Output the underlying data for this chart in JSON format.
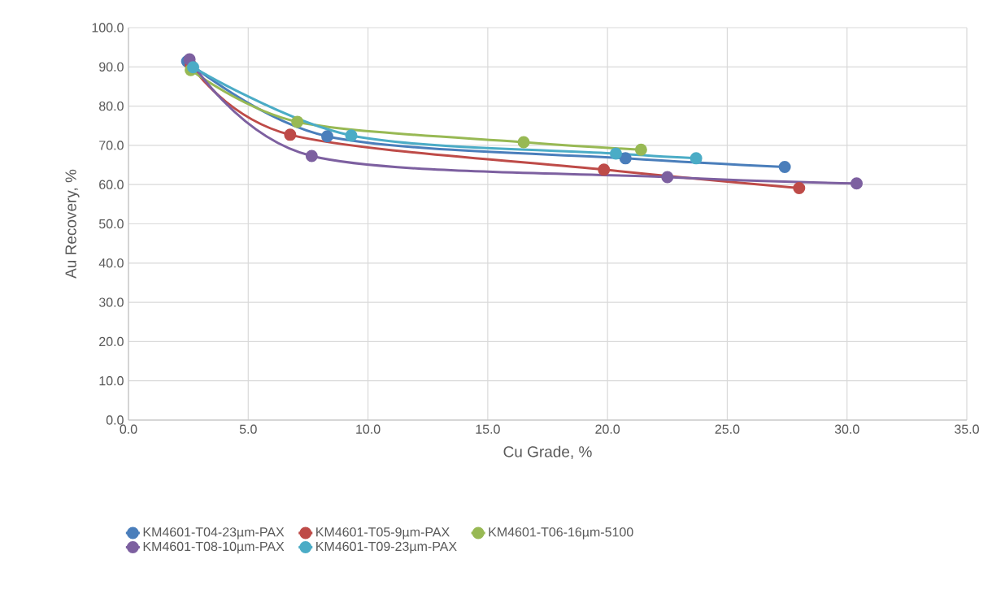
{
  "chart_data": {
    "type": "line",
    "xlabel": "Cu Grade, %",
    "ylabel": "Au Recovery, %",
    "xlim": [
      0,
      35
    ],
    "ylim": [
      0,
      100
    ],
    "xticks": [
      {
        "value": 0,
        "label": "0.0"
      },
      {
        "value": 5,
        "label": "5.0"
      },
      {
        "value": 10,
        "label": "10.0"
      },
      {
        "value": 15,
        "label": "15.0"
      },
      {
        "value": 20,
        "label": "20.0"
      },
      {
        "value": 25,
        "label": "25.0"
      },
      {
        "value": 30,
        "label": "30.0"
      },
      {
        "value": 35,
        "label": "35.0"
      }
    ],
    "yticks": [
      {
        "value": 0,
        "label": "0.0"
      },
      {
        "value": 10,
        "label": "10.0"
      },
      {
        "value": 20,
        "label": "20.0"
      },
      {
        "value": 30,
        "label": "30.0"
      },
      {
        "value": 40,
        "label": "40.0"
      },
      {
        "value": 50,
        "label": "50.0"
      },
      {
        "value": 60,
        "label": "60.0"
      },
      {
        "value": 70,
        "label": "70.0"
      },
      {
        "value": 80,
        "label": "80.0"
      },
      {
        "value": 90,
        "label": "90.0"
      },
      {
        "value": 100,
        "label": "100.0"
      }
    ],
    "grid": true,
    "legend": "bottom",
    "marker": "circle",
    "line_style": "solid",
    "series": [
      {
        "name": "KM4601-T04-23µm-PAX",
        "color": "#4a7ebb",
        "x": [
          2.45,
          8.3,
          20.75,
          27.4
        ],
        "values": [
          91.4,
          72.3,
          66.7,
          64.5
        ]
      },
      {
        "name": "KM4601-T05-9µm-PAX",
        "color": "#be4b48",
        "x": [
          2.6,
          6.75,
          19.85,
          28.0
        ],
        "values": [
          90.5,
          72.7,
          63.8,
          59.1
        ]
      },
      {
        "name": "KM4601-T06-16µm-5100",
        "color": "#98b954",
        "x": [
          2.6,
          7.05,
          16.5,
          21.4
        ],
        "values": [
          89.2,
          76.0,
          70.8,
          68.9
        ]
      },
      {
        "name": "KM4601-T08-10µm-PAX",
        "color": "#7d60a0",
        "x": [
          2.55,
          7.65,
          22.5,
          30.4
        ],
        "values": [
          91.9,
          67.3,
          61.9,
          60.3
        ]
      },
      {
        "name": "KM4601-T09-23µm-PAX",
        "color": "#4bacc6",
        "x": [
          2.7,
          9.3,
          20.35,
          23.7
        ],
        "values": [
          89.9,
          72.5,
          67.9,
          66.7
        ]
      }
    ]
  }
}
